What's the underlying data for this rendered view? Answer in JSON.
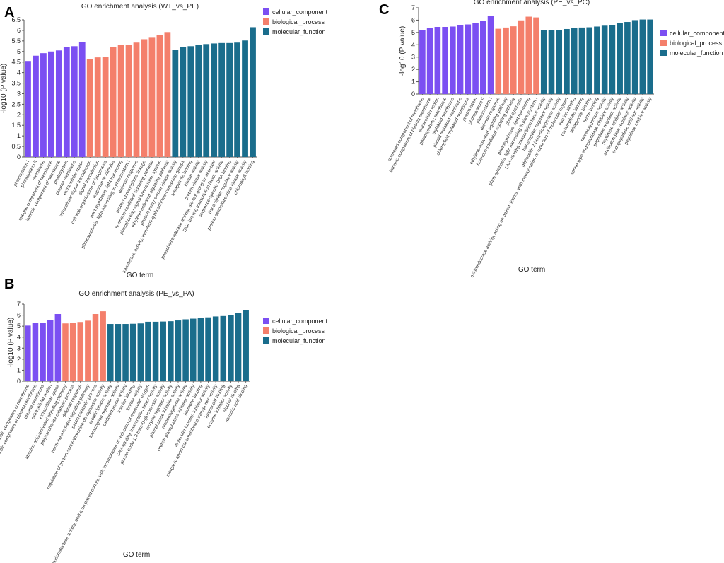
{
  "colors": {
    "cellular_component": "#7b4ff2",
    "biological_process": "#f47f6b",
    "molecular_function": "#1a6d8c"
  },
  "panels": [
    {
      "letter": "A"
    },
    {
      "letter": "B"
    },
    {
      "letter": "C"
    }
  ],
  "chart_data": [
    {
      "type": "bar",
      "panel": "A",
      "title": "GO enrichment analysis (WT_vs_PE)",
      "xlabel": "GO term",
      "ylabel": "-log10 (P value)",
      "ylim": [
        0,
        6.5
      ],
      "yticks": [
        0,
        0.5,
        1,
        1.5,
        2,
        2.5,
        3,
        3.5,
        4,
        4.5,
        5,
        5.5,
        6,
        6.5
      ],
      "legend_position": "top-right",
      "legend": [
        "cellular_component",
        "biological_process",
        "molecular_function"
      ],
      "series": [
        {
          "name": "cellular_component",
          "categories": [
            "photosystem I",
            "photosystem II",
            "membrane",
            "integral component of membrane",
            "intrinsic component of membrane",
            "photosystem",
            "plasma membrane",
            "extracellular space"
          ],
          "values": [
            4.55,
            4.8,
            4.92,
            5.0,
            5.05,
            5.2,
            5.25,
            5.45
          ]
        },
        {
          "name": "biological_process",
          "categories": [
            "intracellular signal transduction",
            "signal transduction",
            "cell wall organization or biogenesis",
            "response to stimulus",
            "photosynthesis, light harvesting",
            "photosynthesis, light harvesting in photosystem I",
            "defense response",
            "protein-chromophore linkage",
            "hormone-mediated signaling pathway",
            "phosphorelay signal transduction system",
            "ethylene-activated signaling pathway"
          ],
          "values": [
            4.63,
            4.72,
            4.75,
            5.2,
            5.3,
            5.32,
            5.42,
            5.58,
            5.65,
            5.78,
            5.92
          ]
        },
        {
          "name": "molecular_function",
          "categories": [
            "phosphorelay sensor kinase activity",
            "transferase activity, transferring phosphorus-containing groups",
            "tetrapyrrole binding",
            "kinase activity",
            "protein kinase activity",
            "phosphotransferase activity, alcohol group as acceptor",
            "DNA-binding transcription factor activity",
            "sequence-specific DNA binding",
            "transcription regulator activity",
            "protein serine/threonine kinase activity",
            "chlorophyll binding"
          ],
          "values": [
            5.08,
            5.2,
            5.25,
            5.3,
            5.35,
            5.38,
            5.4,
            5.4,
            5.42,
            5.52,
            6.15
          ]
        }
      ]
    },
    {
      "type": "bar",
      "panel": "B",
      "title": "GO enrichment analysis (PE_vs_PA)",
      "xlabel": "GO term",
      "ylabel": "-log10 (P value)",
      "ylim": [
        0,
        7
      ],
      "yticks": [
        0,
        1,
        2,
        3,
        4,
        5,
        6,
        7
      ],
      "legend_position": "right",
      "legend": [
        "cellular_component",
        "biological_process",
        "molecular_function"
      ],
      "series": [
        {
          "name": "cellular_component",
          "categories": [
            "intrinsic component of membrane",
            "intrinsic component of plasma membrane",
            "plasma membrane",
            "extracellular region",
            "extracellular space"
          ],
          "values": [
            5.05,
            5.28,
            5.3,
            5.55,
            6.1
          ]
        },
        {
          "name": "biological_process",
          "categories": [
            "abscisic acid-activated signaling pathway",
            "polysaccharide catabolic process",
            "defense response",
            "hormone-mediated signaling pathway",
            "pectin catabolic process",
            "regulation of protein serine/threonine phosphatase activity"
          ],
          "values": [
            5.25,
            5.32,
            5.38,
            5.5,
            6.1,
            6.35
          ]
        },
        {
          "name": "molecular_function",
          "categories": [
            "protein kinase activity",
            "transcription regulator activity",
            "oxidoreductase activity",
            "iron ion binding",
            "kinase activity",
            "oxidoreductase activity, acting on paired donors, with incorporation or reduction of molecular oxygen",
            "DNA-binding transcription factor activity",
            "glucan endo-1,3-beta-D-glucosidase activity",
            "enzyme regulator activity",
            "phosphatase inhibitor activity",
            "monooxygenase activity",
            "protein phosphatase inhibitor activity",
            "hormone binding",
            "molecular function inhibitor activity",
            "inorganic anion transmembrane transporter activity",
            "isoprenoid binding",
            "enzyme inhibitor activity",
            "alcohol binding",
            "abscisic acid binding"
          ],
          "values": [
            5.2,
            5.2,
            5.2,
            5.22,
            5.25,
            5.4,
            5.4,
            5.42,
            5.45,
            5.52,
            5.62,
            5.68,
            5.75,
            5.8,
            5.88,
            5.92,
            6.0,
            6.22,
            6.45
          ]
        }
      ]
    },
    {
      "type": "bar",
      "panel": "C",
      "title": "GO enrichment analysis (PE_vs_PC)",
      "xlabel": "GO term",
      "ylabel": "-log10 (P value)",
      "ylim": [
        0,
        7
      ],
      "yticks": [
        0,
        1,
        2,
        3,
        4,
        5,
        6,
        7
      ],
      "legend_position": "right",
      "legend": [
        "cellular_component",
        "biological_process",
        "molecular_function"
      ],
      "series": [
        {
          "name": "cellular_component",
          "categories": [
            "anchored component of membrane",
            "intrinsic component of plasma membrane",
            "extracellular region",
            "photosynthetic membrane",
            "thylakoid membrane",
            "plastid thylakoid membrane",
            "chloroplast thylakoid membrane",
            "photosystem",
            "photosystem II",
            "photosystem I"
          ],
          "values": [
            5.2,
            5.35,
            5.45,
            5.45,
            5.48,
            5.6,
            5.65,
            5.78,
            5.92,
            6.35
          ]
        },
        {
          "name": "biological_process",
          "categories": [
            "defense response",
            "ethylene-activated signaling pathway",
            "hormone-mediated signaling pathway",
            "photosynthesis",
            "photosynthesis, light harvesting",
            "photosynthesis, light harvesting in photosystem I"
          ],
          "values": [
            5.3,
            5.4,
            5.5,
            5.98,
            6.28,
            6.22
          ]
        },
        {
          "name": "molecular_function",
          "categories": [
            "DNA-binding transcription factor activity",
            "transcription regulator activity",
            "gibberellin 2-beta-dioxygenase activity",
            "oxidoreductase activity, acting on paired donors, with incorporation or reduction of molecular oxygen",
            "iron ion binding",
            "carbohydrate binding",
            "tetrapyrrole binding",
            "heme binding",
            "monooxygenase activity",
            "serine-type endopeptidase inhibitor activity",
            "peptidase regulator activity",
            "peptidase inhibitor activity",
            "endopeptidase regulator activity",
            "endopeptidase inhibitor activity",
            "peptidase inhibitor activity"
          ],
          "values": [
            5.2,
            5.22,
            5.22,
            5.28,
            5.35,
            5.4,
            5.42,
            5.48,
            5.55,
            5.62,
            5.75,
            5.85,
            6.0,
            6.05,
            6.05
          ]
        }
      ]
    }
  ]
}
